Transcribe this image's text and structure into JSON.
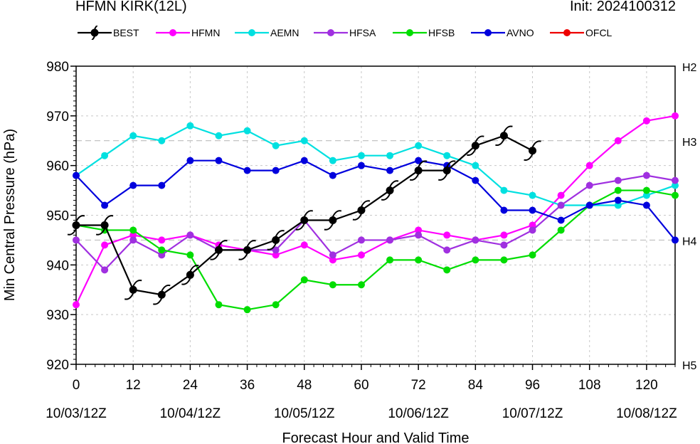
{
  "header": {
    "title_left": "HFMN KIRK(12L)",
    "title_right": "Init: 2024100312"
  },
  "chart_data": {
    "type": "line",
    "xlabel": "Forecast Hour and Valid Time",
    "ylabel": "Min Central Pressure (hPa)",
    "xlim": [
      0,
      126
    ],
    "ylim": [
      920,
      980
    ],
    "grid": true,
    "legend_placement": "top",
    "x_ticks": [
      0,
      12,
      24,
      36,
      48,
      60,
      72,
      84,
      96,
      108,
      120
    ],
    "x_date_labels": [
      {
        "x": 0,
        "label": "10/03/12Z"
      },
      {
        "x": 24,
        "label": "10/04/12Z"
      },
      {
        "x": 48,
        "label": "10/05/12Z"
      },
      {
        "x": 72,
        "label": "10/06/12Z"
      },
      {
        "x": 96,
        "label": "10/07/12Z"
      },
      {
        "x": 120,
        "label": "10/08/12Z"
      }
    ],
    "y_ticks": [
      920,
      930,
      940,
      950,
      960,
      970,
      980
    ],
    "category_lines": [
      {
        "label": "H2",
        "value": 980
      },
      {
        "label": "H3",
        "value": 965
      },
      {
        "label": "H4",
        "value": 945
      },
      {
        "label": "H5",
        "value": 920
      }
    ],
    "series": [
      {
        "name": "BEST",
        "color": "#000000",
        "marker": "hurricane-icon",
        "x": [
          0,
          6,
          12,
          18,
          24,
          30,
          36,
          42,
          48,
          54,
          60,
          66,
          72,
          78,
          84,
          90,
          96
        ],
        "y": [
          948,
          948,
          935,
          934,
          938,
          943,
          943,
          945,
          949,
          949,
          951,
          955,
          959,
          959,
          964,
          966,
          963
        ]
      },
      {
        "name": "HFMN",
        "color": "#ff00ff",
        "x": [
          0,
          6,
          12,
          18,
          24,
          30,
          36,
          42,
          48,
          54,
          60,
          66,
          72,
          78,
          84,
          90,
          96,
          102,
          108,
          114,
          120,
          126
        ],
        "y": [
          932,
          944,
          946,
          945,
          946,
          944,
          943,
          942,
          944,
          941,
          942,
          945,
          947,
          946,
          945,
          946,
          948,
          954,
          960,
          965,
          969,
          970
        ]
      },
      {
        "name": "AEMN",
        "color": "#00e0e0",
        "x": [
          0,
          6,
          12,
          18,
          24,
          30,
          36,
          42,
          48,
          54,
          60,
          66,
          72,
          78,
          84,
          90,
          96,
          102,
          108,
          114,
          120,
          126
        ],
        "y": [
          958,
          962,
          966,
          965,
          968,
          966,
          967,
          964,
          965,
          961,
          962,
          962,
          964,
          962,
          960,
          955,
          954,
          952,
          952,
          952,
          954,
          956
        ]
      },
      {
        "name": "HFSA",
        "color": "#a030e0",
        "x": [
          0,
          6,
          12,
          18,
          24,
          30,
          36,
          42,
          48,
          54,
          60,
          66,
          72,
          78,
          84,
          90,
          96,
          102,
          108,
          114,
          120,
          126
        ],
        "y": [
          945,
          939,
          945,
          942,
          946,
          943,
          943,
          943,
          949,
          942,
          945,
          945,
          946,
          943,
          945,
          944,
          947,
          952,
          956,
          957,
          958,
          957
        ]
      },
      {
        "name": "HFSB",
        "color": "#00dd00",
        "x": [
          0,
          6,
          12,
          18,
          24,
          30,
          36,
          42,
          48,
          54,
          60,
          66,
          72,
          78,
          84,
          90,
          96,
          102,
          108,
          114,
          120,
          126
        ],
        "y": [
          948,
          947,
          947,
          943,
          942,
          932,
          931,
          932,
          937,
          936,
          936,
          941,
          941,
          939,
          941,
          941,
          942,
          947,
          952,
          955,
          955,
          954
        ]
      },
      {
        "name": "AVNO",
        "color": "#0000dd",
        "x": [
          0,
          6,
          12,
          18,
          24,
          30,
          36,
          42,
          48,
          54,
          60,
          66,
          72,
          78,
          84,
          90,
          96,
          102,
          108,
          114,
          120,
          126
        ],
        "y": [
          958,
          952,
          956,
          956,
          961,
          961,
          959,
          959,
          961,
          958,
          960,
          959,
          961,
          960,
          957,
          951,
          951,
          949,
          952,
          953,
          952,
          945
        ]
      },
      {
        "name": "OFCL",
        "color": "#ee0000",
        "x": [],
        "y": []
      }
    ]
  }
}
